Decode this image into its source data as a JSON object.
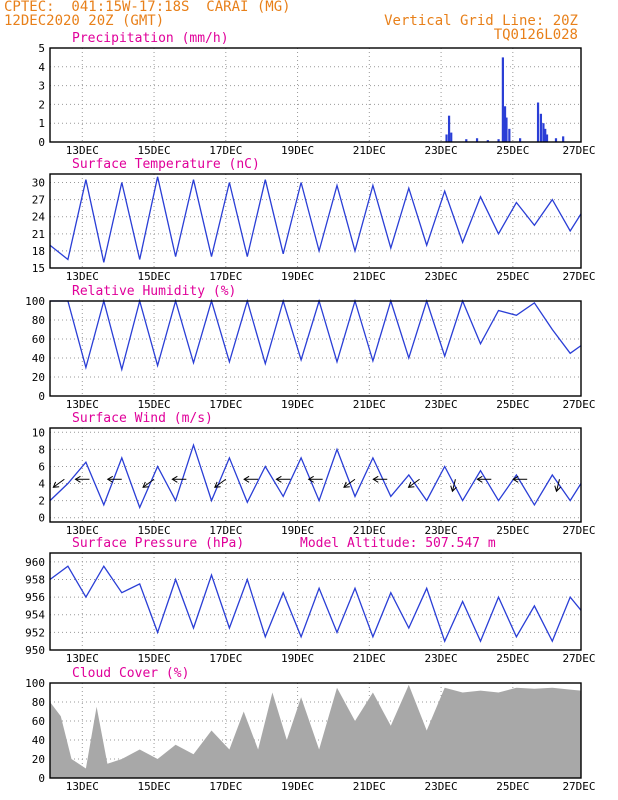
{
  "header": {
    "line1_left": "CPTEC:  041:15W-17:18S  CARAI (MG)",
    "line2_left": "12DEC2020 20Z (GMT)",
    "line1_right": "Vertical Grid Line: 20Z",
    "line2_right": "TQ0126L028"
  },
  "colors": {
    "header": "#e8801a",
    "title": "#e0009a",
    "line": "#2a3ed6",
    "cloud": "#a8a8a8",
    "wind_arrow": "#000000"
  },
  "chart_data": {
    "x_labels": [
      "13DEC",
      "15DEC",
      "17DEC",
      "19DEC",
      "21DEC",
      "23DEC",
      "25DEC",
      "27DEC"
    ],
    "model_altitude": "Model Altitude: 507.547 m",
    "panels": [
      {
        "id": "precip",
        "type": "bar",
        "title": "Precipitation (mm/h)",
        "ylim": [
          0,
          5
        ],
        "yticks": [
          0,
          1,
          2,
          3,
          4,
          5
        ],
        "bars": [
          {
            "day": 11.05,
            "v": 0.4
          },
          {
            "day": 11.12,
            "v": 1.4
          },
          {
            "day": 11.18,
            "v": 0.5
          },
          {
            "day": 11.6,
            "v": 0.15
          },
          {
            "day": 11.9,
            "v": 0.2
          },
          {
            "day": 12.2,
            "v": 0.1
          },
          {
            "day": 12.5,
            "v": 0.15
          },
          {
            "day": 12.62,
            "v": 4.5
          },
          {
            "day": 12.68,
            "v": 1.9
          },
          {
            "day": 12.72,
            "v": 1.3
          },
          {
            "day": 12.8,
            "v": 0.7
          },
          {
            "day": 13.1,
            "v": 0.2
          },
          {
            "day": 13.6,
            "v": 2.1
          },
          {
            "day": 13.68,
            "v": 1.5
          },
          {
            "day": 13.75,
            "v": 1.0
          },
          {
            "day": 13.8,
            "v": 0.7
          },
          {
            "day": 13.85,
            "v": 0.4
          },
          {
            "day": 14.1,
            "v": 0.2
          },
          {
            "day": 14.3,
            "v": 0.3
          }
        ]
      },
      {
        "id": "temp",
        "type": "line",
        "title": "Surface Temperature (nC)",
        "ylim": [
          15,
          31.5
        ],
        "yticks": [
          15,
          18,
          21,
          24,
          27,
          30
        ],
        "x": [
          0,
          0.5,
          1,
          1.5,
          2,
          2.5,
          3,
          3.5,
          4,
          4.5,
          5,
          5.5,
          6,
          6.5,
          7,
          7.5,
          8,
          8.5,
          9,
          9.5,
          10,
          10.5,
          11,
          11.5,
          12,
          12.5,
          13,
          13.5,
          14,
          14.5,
          14.8
        ],
        "y": [
          19,
          16.5,
          30.5,
          16,
          30,
          16.5,
          31,
          17,
          30.5,
          17,
          30,
          17,
          30.5,
          17.5,
          30,
          18,
          29.5,
          18,
          29.5,
          18.5,
          29,
          19,
          28.5,
          19.5,
          27.5,
          21,
          26.5,
          22.5,
          27,
          21.5,
          24.5
        ]
      },
      {
        "id": "rh",
        "type": "line",
        "title": "Relative Humidity (%)",
        "ylim": [
          0,
          100
        ],
        "yticks": [
          0,
          20,
          40,
          60,
          80,
          100
        ],
        "x": [
          0,
          0.5,
          1,
          1.5,
          2,
          2.5,
          3,
          3.5,
          4,
          4.5,
          5,
          5.5,
          6,
          6.5,
          7,
          7.5,
          8,
          8.5,
          9,
          9.5,
          10,
          10.5,
          11,
          11.5,
          12,
          12.5,
          13,
          13.5,
          14,
          14.5,
          14.8
        ],
        "y": [
          100,
          100,
          30,
          100,
          28,
          100,
          32,
          100,
          35,
          100,
          36,
          100,
          34,
          100,
          38,
          100,
          36,
          100,
          37,
          100,
          40,
          100,
          42,
          100,
          55,
          90,
          85,
          98,
          70,
          45,
          53
        ]
      },
      {
        "id": "wind",
        "type": "line",
        "title": "Surface Wind (m/s)",
        "ylim": [
          -0.5,
          10.5
        ],
        "yticks": [
          0,
          2,
          4,
          6,
          8,
          10
        ],
        "x": [
          0,
          0.5,
          1,
          1.5,
          2,
          2.5,
          3,
          3.5,
          4,
          4.5,
          5,
          5.5,
          6,
          6.5,
          7,
          7.5,
          8,
          8.5,
          9,
          9.5,
          10,
          10.5,
          11,
          11.5,
          12,
          12.5,
          13,
          13.5,
          14,
          14.5,
          14.8
        ],
        "y": [
          2,
          4,
          6.5,
          1.5,
          7,
          1.2,
          6,
          2,
          8.5,
          2,
          7,
          1.8,
          6,
          2.5,
          7,
          2,
          8,
          2.5,
          7,
          2.5,
          5,
          2,
          6,
          2,
          5.5,
          2,
          5,
          1.5,
          5,
          2,
          4
        ],
        "arrows_x": [
          0.4,
          1.1,
          2.0,
          2.9,
          3.8,
          4.9,
          5.8,
          6.7,
          7.6,
          8.5,
          9.4,
          10.3,
          11.3,
          12.3,
          13.3,
          14.2
        ],
        "arrows_dir": [
          "dl",
          "l",
          "l",
          "dl",
          "l",
          "dl",
          "l",
          "l",
          "l",
          "dl",
          "l",
          "dl",
          "d",
          "l",
          "l",
          "d"
        ]
      },
      {
        "id": "pressure",
        "type": "line",
        "title": "Surface Pressure (hPa)",
        "ylim": [
          950,
          961
        ],
        "yticks": [
          950,
          952,
          954,
          956,
          958,
          960
        ],
        "x": [
          0,
          0.5,
          1,
          1.5,
          2,
          2.5,
          3,
          3.5,
          4,
          4.5,
          5,
          5.5,
          6,
          6.5,
          7,
          7.5,
          8,
          8.5,
          9,
          9.5,
          10,
          10.5,
          11,
          11.5,
          12,
          12.5,
          13,
          13.5,
          14,
          14.5,
          14.8
        ],
        "y": [
          958,
          959.5,
          956,
          959.5,
          956.5,
          957.5,
          952,
          958,
          952.5,
          958.5,
          952.5,
          958,
          951.5,
          956.5,
          951.5,
          957,
          952,
          957,
          951.5,
          956.5,
          952.5,
          957,
          951,
          955.5,
          951,
          956,
          951.5,
          955,
          951,
          956,
          954.5
        ]
      },
      {
        "id": "cloud",
        "type": "area",
        "title": "Cloud Cover (%)",
        "ylim": [
          0,
          100
        ],
        "yticks": [
          0,
          20,
          40,
          60,
          80,
          100
        ],
        "x": [
          0,
          0.3,
          0.6,
          1,
          1.3,
          1.6,
          2,
          2.5,
          3,
          3.5,
          4,
          4.5,
          5,
          5.4,
          5.8,
          6.2,
          6.6,
          7,
          7.5,
          8,
          8.5,
          9,
          9.5,
          10,
          10.5,
          11,
          11.5,
          12,
          12.5,
          13,
          13.5,
          14,
          14.5,
          14.8
        ],
        "y": [
          80,
          65,
          20,
          10,
          75,
          15,
          20,
          30,
          20,
          35,
          25,
          50,
          30,
          70,
          30,
          90,
          40,
          85,
          30,
          95,
          60,
          90,
          55,
          98,
          50,
          95,
          90,
          92,
          90,
          95,
          94,
          95,
          93,
          92
        ]
      }
    ]
  }
}
